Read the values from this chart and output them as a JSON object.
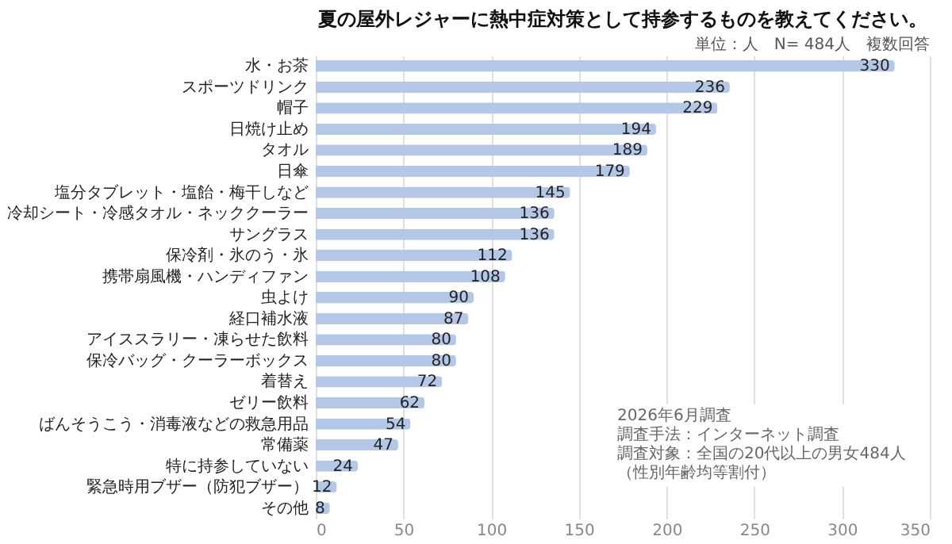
{
  "chart_data": {
    "type": "bar",
    "orientation": "horizontal",
    "title": "夏の屋外レジャーに熱中症対策として持参するものを教えてください。",
    "categories": [
      "水・お茶",
      "スポーツドリンク",
      "帽子",
      "日焼け止め",
      "タオル",
      "日傘",
      "塩分タブレット・塩飴・梅干しなど",
      "冷却シート・冷感タオル・ネッククーラー",
      "サングラス",
      "保冷剤・氷のう・氷",
      "携帯扇風機・ハンディファン",
      "虫よけ",
      "経口補水液",
      "アイススラリー・凍らせた飲料",
      "保冷バッグ・クーラーボックス",
      "着替え",
      "ゼリー飲料",
      "ばんそうこう・消毒液などの救急用品",
      "常備薬",
      "特に持参していない",
      "緊急時用ブザー（防犯ブザー）",
      "その他"
    ],
    "values": [
      330,
      236,
      229,
      194,
      189,
      179,
      145,
      136,
      136,
      112,
      108,
      90,
      87,
      80,
      80,
      72,
      62,
      54,
      47,
      24,
      12,
      8
    ],
    "color": "#b4c7e7",
    "data_labels": true,
    "grid": "x",
    "xlim": [
      0,
      350
    ],
    "xticks": [
      0,
      50,
      100,
      150,
      200,
      250,
      300,
      350
    ],
    "annotations": [
      "単位：人　N= 484人　複数回答",
      "2026年6月調査",
      "調査手法：インターネット調査",
      "調査対象：全国の20代以上の男女484人",
      "（性別年齢均等割付）"
    ]
  }
}
